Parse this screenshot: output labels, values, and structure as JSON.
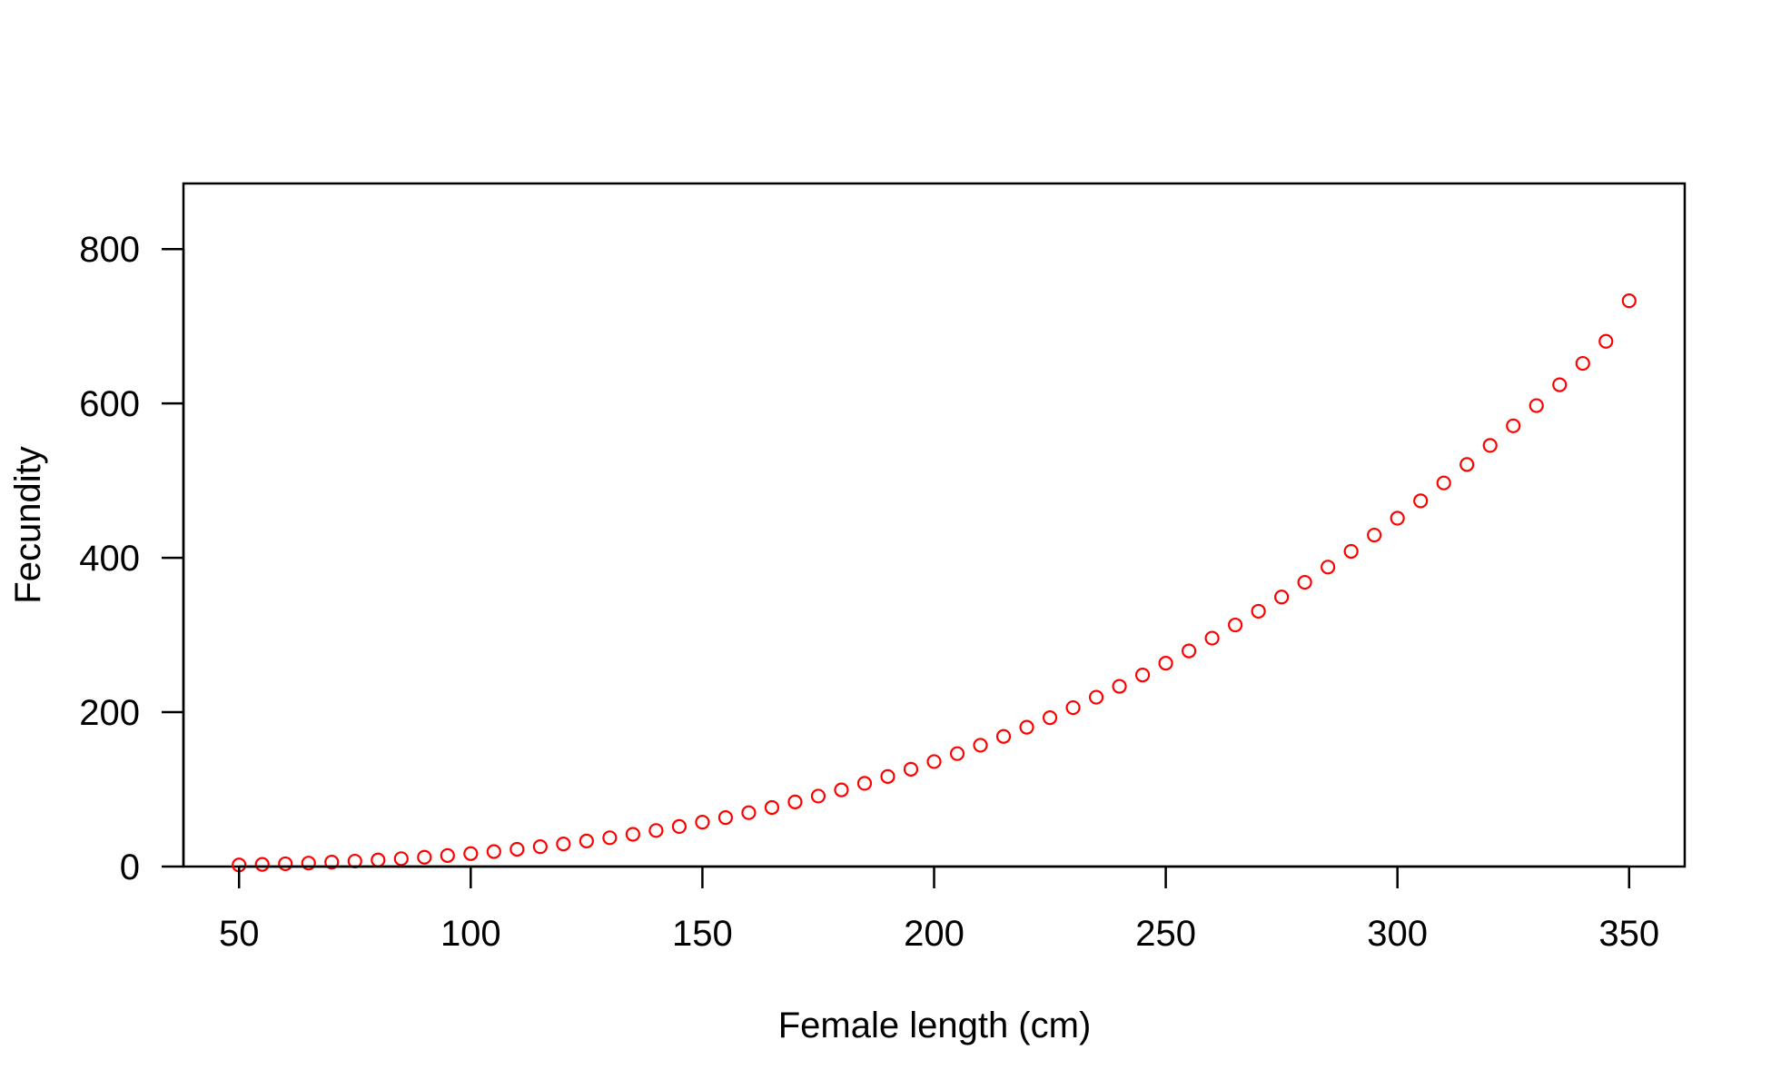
{
  "chart_data": {
    "type": "scatter",
    "title": "",
    "xlabel": "Female length (cm)",
    "ylabel": "Fecundity",
    "xlim": [
      38,
      362
    ],
    "ylim": [
      0,
      885
    ],
    "xticks": [
      50,
      100,
      150,
      200,
      250,
      300,
      350
    ],
    "xtick_labels": [
      "50",
      "100",
      "150",
      "200",
      "250",
      "300",
      "350"
    ],
    "yticks": [
      0,
      200,
      400,
      600,
      800
    ],
    "ytick_labels": [
      "0",
      "200",
      "400",
      "600",
      "800"
    ],
    "grid": false,
    "legend": "none",
    "marker": "open-circle",
    "color": "#ff0000",
    "series": [
      {
        "x": [
          50,
          55,
          60,
          65,
          70,
          75,
          80,
          85,
          90,
          95,
          100,
          105,
          110,
          115,
          120,
          125,
          130,
          135,
          140,
          145,
          150,
          155,
          160,
          165,
          170,
          175,
          180,
          185,
          190,
          195,
          200,
          205,
          210,
          215,
          220,
          225,
          230,
          235,
          240,
          245,
          250,
          255,
          260,
          265,
          270,
          275,
          280,
          285,
          290,
          295,
          300,
          305,
          310,
          315,
          320,
          325,
          330,
          335,
          340,
          345,
          350
        ],
        "y": [
          2.1,
          2.8,
          3.6,
          4.5,
          5.7,
          7.0,
          8.5,
          10.2,
          12.1,
          14.3,
          16.8,
          19.4,
          22.4,
          25.7,
          29.3,
          33.1,
          37.3,
          41.8,
          46.7,
          51.9,
          57.5,
          63.4,
          69.8,
          76.5,
          83.7,
          91.3,
          99.3,
          107.8,
          116.7,
          126.1,
          136.0,
          146.3,
          157.2,
          168.6,
          180.5,
          192.9,
          205.9,
          219.4,
          233.5,
          248.2,
          263.5,
          279.4,
          295.9,
          313.0,
          330.8,
          349.2,
          368.3,
          388.0,
          408.4,
          429.5,
          451.3,
          473.8,
          497.0,
          520.9,
          545.6,
          571.0,
          597.2,
          624.2,
          651.9,
          680.5,
          733.0
        ]
      }
    ]
  }
}
